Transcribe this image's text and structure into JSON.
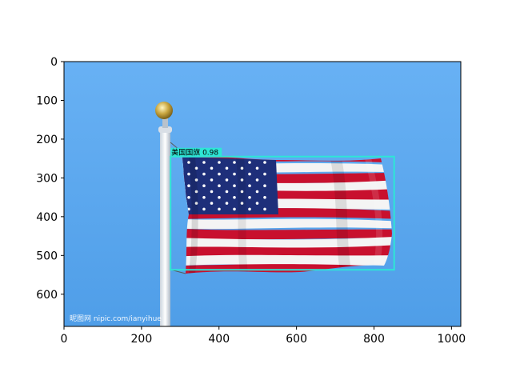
{
  "axes": {
    "xlim": [
      0,
      1024
    ],
    "ylim": [
      683,
      0
    ],
    "x_ticks": [
      0,
      200,
      400,
      600,
      800,
      1000
    ],
    "y_ticks": [
      0,
      100,
      200,
      300,
      400,
      500,
      600
    ],
    "x_tick_labels": [
      "0",
      "200",
      "400",
      "600",
      "800",
      "1000"
    ],
    "y_tick_labels": [
      "0",
      "100",
      "200",
      "300",
      "400",
      "500",
      "600"
    ]
  },
  "image": {
    "sky_color": "#5aa6f0",
    "subject": "flag"
  },
  "detection": {
    "box": {
      "x_min": 275,
      "y_min": 245,
      "x_max": 852,
      "y_max": 537
    },
    "box_color": "#2ee6d6",
    "label": "美国国旗 0.98"
  },
  "watermark": {
    "text": "昵图网 nipic.com/ianyihue"
  }
}
